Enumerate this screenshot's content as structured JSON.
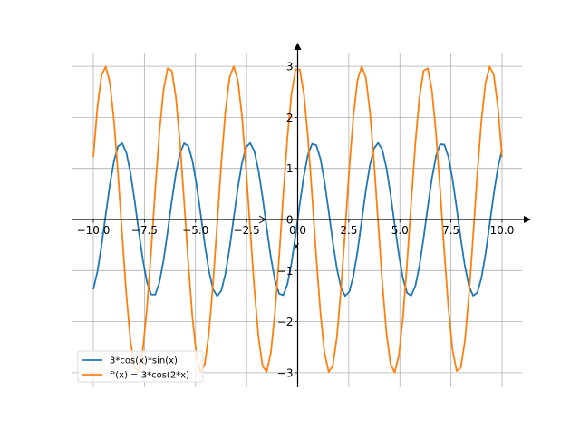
{
  "chart_data": {
    "type": "line",
    "title": "",
    "xlabel": "x",
    "ylabel": "",
    "xlim": [
      -11,
      11
    ],
    "ylim": [
      -3.3,
      3.3
    ],
    "xticks": [
      -10,
      -7.5,
      -5,
      -2.5,
      0,
      2.5,
      5,
      7.5,
      10
    ],
    "xtick_labels": [
      "−10.0",
      "−7.5",
      "−5.0",
      "−2.5",
      "0.0",
      "2.5",
      "5.0",
      "7.5",
      "10.0"
    ],
    "yticks": [
      -3,
      -2,
      -1,
      0,
      1,
      2,
      3
    ],
    "ytick_labels": [
      "−3",
      "−2",
      "−1",
      "0",
      "1",
      "2",
      "3"
    ],
    "grid": true,
    "legend_placement": "lower-left",
    "x_range": [
      -10,
      10
    ],
    "num_points": 100,
    "series": [
      {
        "name": "3*cos(x)*sin(x)",
        "expr": "3*cos(x)*sin(x)",
        "color": "#1f77b4"
      },
      {
        "name": "f'(x) = 3*cos(2*x)",
        "expr": "3*cos(2*x)",
        "color": "#ff7f0e"
      }
    ]
  }
}
